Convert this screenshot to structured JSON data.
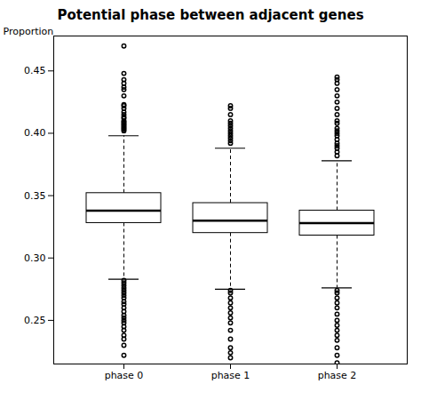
{
  "chart_data": {
    "type": "box",
    "title": "Potential phase between adjacent genes",
    "ylabel": "Proportion",
    "categories": [
      "phase 0",
      "phase 1",
      "phase 2"
    ],
    "stats": [
      {
        "median": 0.338,
        "q1": 0.328,
        "q3": 0.352,
        "whisker_low": 0.283,
        "whisker_high": 0.398,
        "outliers_low": [
          0.282,
          0.28,
          0.278,
          0.276,
          0.274,
          0.272,
          0.27,
          0.268,
          0.265,
          0.263,
          0.26,
          0.257,
          0.254,
          0.252,
          0.25,
          0.248,
          0.245,
          0.242,
          0.238,
          0.235,
          0.23,
          0.222
        ],
        "outliers_high": [
          0.402,
          0.403,
          0.404,
          0.405,
          0.406,
          0.407,
          0.408,
          0.409,
          0.41,
          0.412,
          0.413,
          0.415,
          0.417,
          0.42,
          0.422,
          0.423,
          0.43,
          0.435,
          0.437,
          0.44,
          0.443,
          0.448,
          0.47
        ]
      },
      {
        "median": 0.33,
        "q1": 0.32,
        "q3": 0.344,
        "whisker_low": 0.275,
        "whisker_high": 0.388,
        "outliers_low": [
          0.274,
          0.272,
          0.268,
          0.264,
          0.26,
          0.256,
          0.252,
          0.248,
          0.242,
          0.235,
          0.228,
          0.224,
          0.22
        ],
        "outliers_high": [
          0.392,
          0.394,
          0.396,
          0.398,
          0.4,
          0.402,
          0.404,
          0.406,
          0.408,
          0.41,
          0.415,
          0.42,
          0.422
        ]
      },
      {
        "median": 0.328,
        "q1": 0.318,
        "q3": 0.338,
        "whisker_low": 0.276,
        "whisker_high": 0.378,
        "outliers_low": [
          0.274,
          0.272,
          0.268,
          0.264,
          0.26,
          0.255,
          0.25,
          0.246,
          0.242,
          0.238,
          0.234,
          0.228,
          0.222,
          0.216
        ],
        "outliers_high": [
          0.382,
          0.385,
          0.388,
          0.39,
          0.392,
          0.395,
          0.398,
          0.4,
          0.402,
          0.404,
          0.408,
          0.41,
          0.415,
          0.42,
          0.425,
          0.43,
          0.435,
          0.44,
          0.443,
          0.445
        ]
      }
    ],
    "ylim": [
      0.215,
      0.478
    ],
    "yticks": [
      0.25,
      {
        "value": 0.3,
        "label": "0.30"
      },
      0.35,
      {
        "value": 0.4,
        "label": "0.40"
      },
      0.45
    ],
    "grid": false
  }
}
